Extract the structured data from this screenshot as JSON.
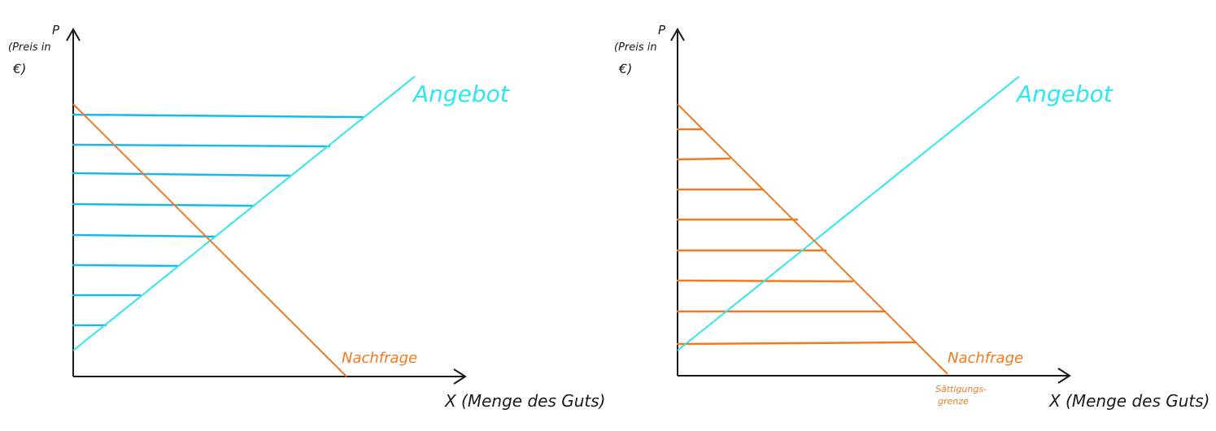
{
  "colors": {
    "axis": "#1a1a1a",
    "supply": "#2ee6f0",
    "demand": "#f07a22",
    "supply_hatch": "#1ab8e8",
    "demand_hatch": "#f07a22"
  },
  "panels": [
    {
      "id": "left",
      "y_label_line1": "(Preis in",
      "y_label_line2": "€)",
      "y_axis_symbol": "P",
      "x_axis_label": "X (Menge des Guts)",
      "supply_label": "Angebot",
      "demand_label": "Nachfrage",
      "hatched_area": "supply"
    },
    {
      "id": "right",
      "y_label_line1": "(Preis in",
      "y_label_line2": "€)",
      "y_axis_symbol": "P",
      "x_axis_label": "X (Menge des Guts)",
      "supply_label": "Angebot",
      "demand_label": "Nachfrage",
      "saturation_label_line1": "Sättigungs-",
      "saturation_label_line2": "grenze",
      "hatched_area": "demand"
    }
  ]
}
